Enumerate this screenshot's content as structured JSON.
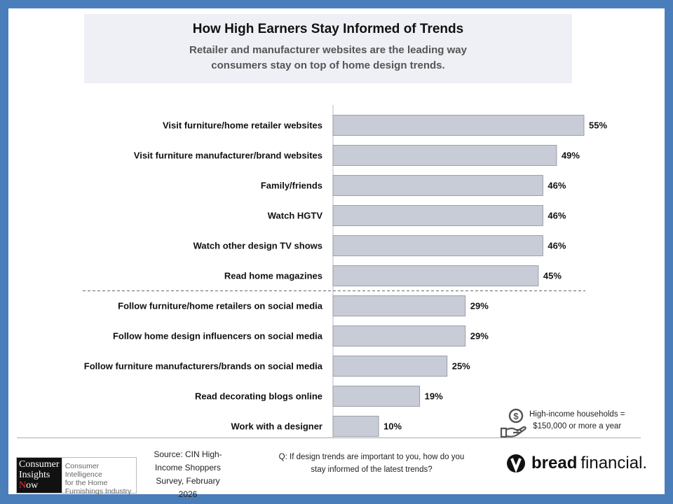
{
  "chart_data": {
    "type": "bar",
    "orientation": "horizontal",
    "title": "How High Earners Stay Informed of Trends",
    "subtitle": "Retailer and manufacturer websites are the leading way consumers stay on top of home design trends.",
    "categories": [
      "Visit furniture/home retailer websites",
      "Visit furniture manufacturer/brand websites",
      "Family/friends",
      "Watch HGTV",
      "Watch other design TV shows",
      "Read home magazines",
      "Follow furniture/home retailers on social media",
      "Follow home design influencers on social media",
      "Follow furniture manufacturers/brands on social media",
      "Read decorating blogs online",
      "Work with a designer"
    ],
    "values": [
      55,
      49,
      46,
      46,
      46,
      45,
      29,
      29,
      25,
      19,
      10
    ],
    "value_suffix": "%",
    "xlim": [
      0,
      55
    ],
    "grid": false,
    "bar_color": "#c8ccd6",
    "divider_after_index": 5
  },
  "subtitle_lines": [
    "Retailer and manufacturer websites are the leading way",
    "consumers stay on top of home design trends."
  ],
  "note": {
    "icon": "hand-coin-icon",
    "line1": "High-income households =",
    "line2": "$150,000 or more a year"
  },
  "footer": {
    "logo": {
      "l1": "Consumer",
      "l2": "Insights",
      "l3n": "N",
      "l3": "ow",
      "t1": "Consumer Intelligence",
      "t2": "for the Home",
      "t3": "Furnishings Industry"
    },
    "source": [
      "Source: CIN High-",
      "Income Shoppers",
      "Survey, February 2026"
    ],
    "question": [
      "Q:  If design trends are important to you, how do you",
      "stay informed of the latest trends?"
    ],
    "brand": {
      "bold": "bread",
      "light": "financial."
    }
  }
}
